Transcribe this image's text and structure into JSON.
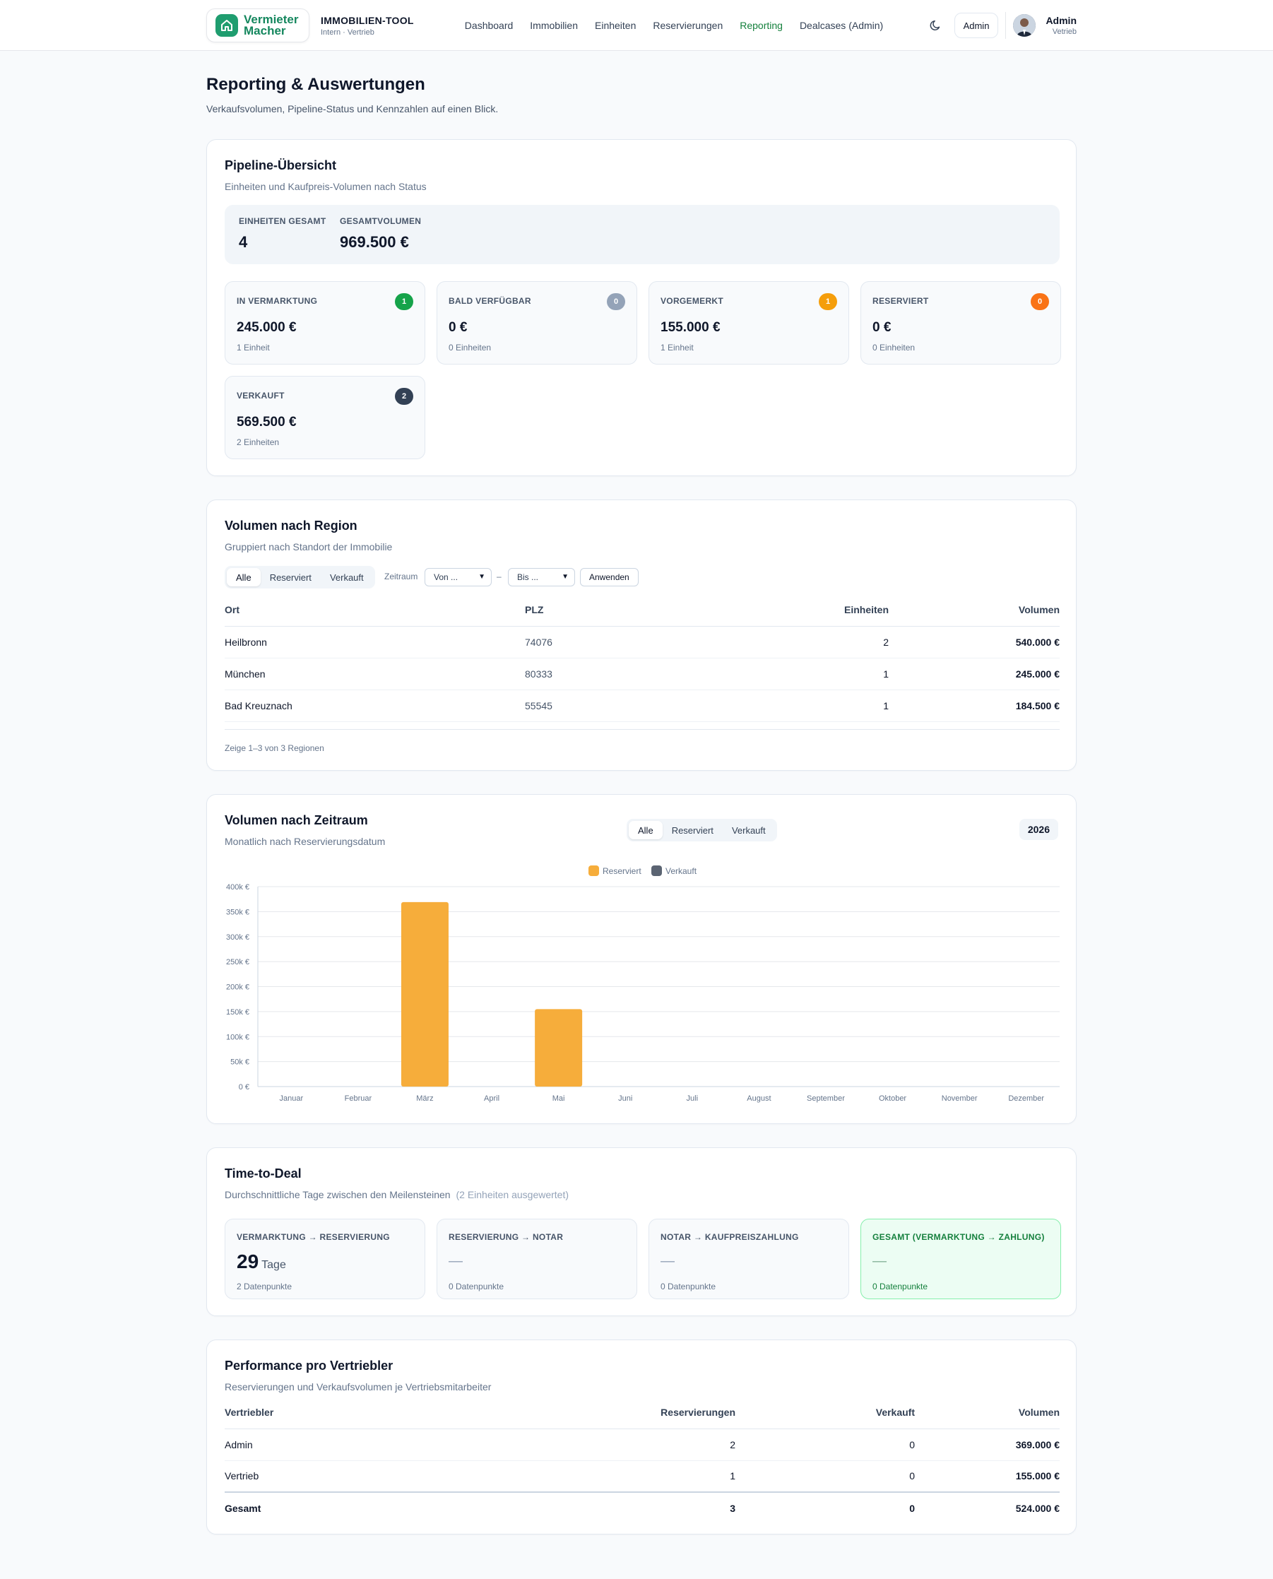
{
  "header": {
    "logo_text_line1": "Vermieter",
    "logo_text_line2": "Macher",
    "app_title": "IMMOBILIEN-TOOL",
    "app_subtitle": "Intern · Vertrieb",
    "nav": [
      "Dashboard",
      "Immobilien",
      "Einheiten",
      "Reservierungen",
      "Reporting",
      "Dealcases (Admin)"
    ],
    "active_nav": "Reporting",
    "role_button": "Admin",
    "user_name": "Admin",
    "user_role": "Vetrieb"
  },
  "page": {
    "title": "Reporting & Auswertungen",
    "subtitle": "Verkaufsvolumen, Pipeline-Status und Kennzahlen auf einen Blick."
  },
  "pipeline": {
    "title": "Pipeline-Übersicht",
    "subtitle": "Einheiten und Kaufpreis-Volumen nach Status",
    "total_units_label": "EINHEITEN GESAMT",
    "total_units": "4",
    "total_volume_label": "GESAMTVOLUMEN",
    "total_volume": "969.500 €",
    "stats": [
      {
        "label": "IN VERMARKTUNG",
        "badge": "1",
        "color": "#16a34a",
        "value": "245.000 €",
        "count": "1 Einheit"
      },
      {
        "label": "BALD VERFÜGBAR",
        "badge": "0",
        "color": "#94a3b8",
        "value": "0 €",
        "count": "0 Einheiten"
      },
      {
        "label": "VORGEMERKT",
        "badge": "1",
        "color": "#f59e0b",
        "value": "155.000 €",
        "count": "1 Einheit"
      },
      {
        "label": "RESERVIERT",
        "badge": "0",
        "color": "#f97316",
        "value": "0 €",
        "count": "0 Einheiten"
      },
      {
        "label": "VERKAUFT",
        "badge": "2",
        "color": "#334155",
        "value": "569.500 €",
        "count": "2 Einheiten"
      }
    ]
  },
  "region": {
    "title": "Volumen nach Region",
    "subtitle": "Gruppiert nach Standort der Immobilie",
    "filters": [
      "Alle",
      "Reserviert",
      "Verkauft"
    ],
    "active_filter": "Alle",
    "period_label": "Zeitraum",
    "from_placeholder": "Von ...",
    "to_placeholder": "Bis ...",
    "range_sep": "–",
    "apply_label": "Anwenden",
    "columns": [
      "Ort",
      "PLZ",
      "Einheiten",
      "Volumen"
    ],
    "rows": [
      {
        "ort": "Heilbronn",
        "plz": "74076",
        "einheiten": "2",
        "volumen": "540.000 €"
      },
      {
        "ort": "München",
        "plz": "80333",
        "einheiten": "1",
        "volumen": "245.000 €"
      },
      {
        "ort": "Bad Kreuznach",
        "plz": "55545",
        "einheiten": "1",
        "volumen": "184.500 €"
      }
    ],
    "footer": "Zeige 1–3 von 3 Regionen"
  },
  "period": {
    "title": "Volumen nach Zeitraum",
    "subtitle": "Monatlich nach Reservierungsdatum",
    "filters": [
      "Alle",
      "Reserviert",
      "Verkauft"
    ],
    "active_filter": "Alle",
    "year": "2026"
  },
  "chart_data": {
    "type": "bar",
    "categories": [
      "Januar",
      "Februar",
      "März",
      "April",
      "Mai",
      "Juni",
      "Juli",
      "August",
      "September",
      "Oktober",
      "November",
      "Dezember"
    ],
    "series": [
      {
        "name": "Reserviert",
        "color": "#f6ad3b",
        "values": [
          0,
          0,
          369000,
          0,
          155000,
          0,
          0,
          0,
          0,
          0,
          0,
          0
        ]
      },
      {
        "name": "Verkauft",
        "color": "#5b6472",
        "values": [
          0,
          0,
          0,
          0,
          0,
          0,
          0,
          0,
          0,
          0,
          0,
          0
        ]
      }
    ],
    "ylim": [
      0,
      400000
    ],
    "yticks": [
      "0 €",
      "50k €",
      "100k €",
      "150k €",
      "200k €",
      "250k €",
      "300k €",
      "350k €",
      "400k €"
    ],
    "legend_position": "top-center",
    "grid": true
  },
  "ttd": {
    "title": "Time-to-Deal",
    "subtitle": "Durchschnittliche Tage zwischen den Meilensteinen",
    "subtitle_note": "(2 Einheiten ausgewertet)",
    "cards": [
      {
        "label": "VERMARKTUNG → RESERVIERUNG",
        "value": "29",
        "unit": "Tage",
        "points": "2 Datenpunkte"
      },
      {
        "label": "RESERVIERUNG → NOTAR",
        "value": "—",
        "unit": "",
        "points": "0 Datenpunkte"
      },
      {
        "label": "NOTAR → KAUFPREISZAHLUNG",
        "value": "—",
        "unit": "",
        "points": "0 Datenpunkte"
      },
      {
        "label": "GESAMT (VERMARKTUNG → ZAHLUNG)",
        "value": "—",
        "unit": "",
        "points": "0 Datenpunkte"
      }
    ]
  },
  "performance": {
    "title": "Performance pro Vertriebler",
    "subtitle": "Reservierungen und Verkaufsvolumen je Vertriebsmitarbeiter",
    "columns": [
      "Vertriebler",
      "Reservierungen",
      "Verkauft",
      "Volumen"
    ],
    "rows": [
      {
        "name": "Admin",
        "res": "2",
        "sold": "0",
        "vol": "369.000 €"
      },
      {
        "name": "Vertrieb",
        "res": "1",
        "sold": "0",
        "vol": "155.000 €"
      }
    ],
    "total": {
      "name": "Gesamt",
      "res": "3",
      "sold": "0",
      "vol": "524.000 €"
    }
  }
}
